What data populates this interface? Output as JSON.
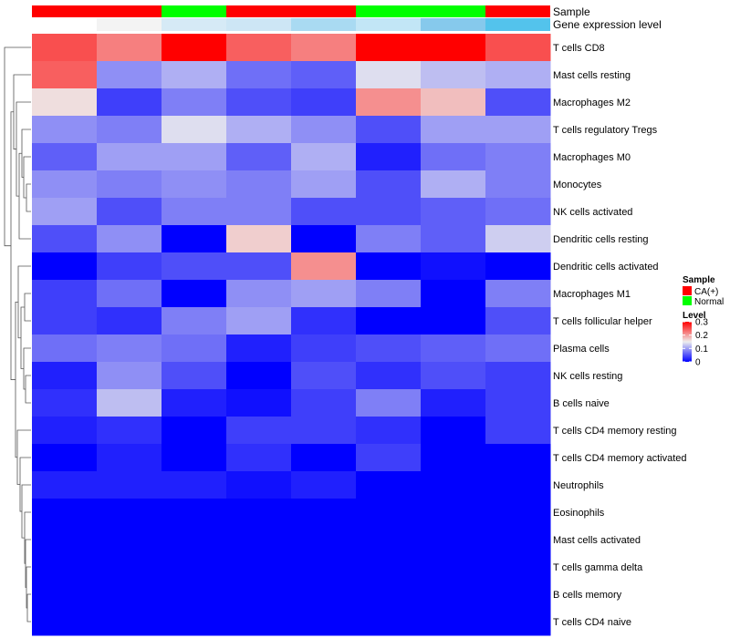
{
  "chart_data": {
    "type": "heatmap",
    "title": "",
    "annotation_rows": [
      {
        "name": "Sample",
        "label": "Sample"
      },
      {
        "name": "Gene expression level",
        "label": "Gene expression level"
      }
    ],
    "sample_groups": [
      "CA(+)",
      "CA(+)",
      "Normal",
      "CA(+)",
      "CA(+)",
      "Normal",
      "Normal",
      "CA(+)"
    ],
    "gene_expression_colors": [
      "#ffffff",
      "#f3f3f3",
      "#d6eaf6",
      "#cde6f5",
      "#a9daf2",
      "#c2e6f6",
      "#86c9ec",
      "#53c3ec"
    ],
    "rows": [
      "T cells CD8",
      "Mast cells resting",
      "Macrophages M2",
      "T cells regulatory  Tregs",
      "Macrophages M0",
      "Monocytes",
      "NK cells activated",
      "Dendritic cells resting",
      "Dendritic cells activated",
      "Macrophages M1",
      "T cells follicular helper",
      "Plasma cells",
      "NK cells resting",
      "B cells naive",
      "T cells CD4 memory resting",
      "T cells CD4 memory activated",
      "Neutrophils",
      "Eosinophils",
      "Mast cells activated",
      "T cells gamma delta",
      "B cells memory",
      "T cells CD4 naive"
    ],
    "values": [
      [
        0.25,
        0.22,
        0.3,
        0.24,
        0.22,
        0.3,
        0.3,
        0.25
      ],
      [
        0.24,
        0.09,
        0.11,
        0.07,
        0.06,
        0.14,
        0.12,
        0.11
      ],
      [
        0.16,
        0.04,
        0.08,
        0.05,
        0.04,
        0.21,
        0.18,
        0.05
      ],
      [
        0.09,
        0.08,
        0.14,
        0.11,
        0.09,
        0.05,
        0.1,
        0.1
      ],
      [
        0.06,
        0.1,
        0.1,
        0.06,
        0.11,
        0.02,
        0.07,
        0.08
      ],
      [
        0.09,
        0.08,
        0.09,
        0.08,
        0.1,
        0.05,
        0.11,
        0.08
      ],
      [
        0.1,
        0.05,
        0.08,
        0.08,
        0.05,
        0.05,
        0.06,
        0.07
      ],
      [
        0.05,
        0.09,
        0.0,
        0.17,
        0.0,
        0.08,
        0.06,
        0.13
      ],
      [
        0.0,
        0.04,
        0.05,
        0.05,
        0.21,
        0.0,
        0.01,
        0.0
      ],
      [
        0.04,
        0.07,
        0.0,
        0.09,
        0.1,
        0.08,
        0.0,
        0.08
      ],
      [
        0.04,
        0.03,
        0.08,
        0.1,
        0.03,
        0.0,
        0.0,
        0.05
      ],
      [
        0.07,
        0.08,
        0.07,
        0.02,
        0.04,
        0.05,
        0.06,
        0.07
      ],
      [
        0.02,
        0.09,
        0.05,
        0.0,
        0.05,
        0.03,
        0.05,
        0.04
      ],
      [
        0.03,
        0.12,
        0.02,
        0.01,
        0.04,
        0.08,
        0.02,
        0.04
      ],
      [
        0.02,
        0.03,
        0.0,
        0.04,
        0.04,
        0.03,
        0.0,
        0.04
      ],
      [
        0.0,
        0.02,
        0.0,
        0.03,
        0.0,
        0.04,
        0.0,
        0.0
      ],
      [
        0.02,
        0.02,
        0.02,
        0.01,
        0.02,
        0.0,
        0.0,
        0.0
      ],
      [
        0.0,
        0.0,
        0.0,
        0.0,
        0.0,
        0.0,
        0.0,
        0.0
      ],
      [
        0.0,
        0.0,
        0.0,
        0.0,
        0.0,
        0.0,
        0.0,
        0.0
      ],
      [
        0.0,
        0.0,
        0.0,
        0.0,
        0.0,
        0.0,
        0.0,
        0.0
      ],
      [
        0.0,
        0.0,
        0.0,
        0.0,
        0.0,
        0.0,
        0.0,
        0.0
      ],
      [
        0.0,
        0.0,
        0.0,
        0.0,
        0.0,
        0.0,
        0.0,
        0.0
      ]
    ],
    "color_scale": {
      "min": 0,
      "max": 0.3,
      "low": "#0000ff",
      "mid": "#eeeeee",
      "high": "#ff0000",
      "midpoint": 0.15
    },
    "legend": {
      "sample_title": "Sample",
      "sample_entries": [
        {
          "label": "CA(+)",
          "color": "#ff0000"
        },
        {
          "label": "Normal",
          "color": "#00ff00"
        }
      ],
      "level_title": "Level",
      "level_ticks": [
        "0.3",
        "0.2",
        "0.1",
        "0"
      ],
      "level_tick_values": [
        0.3,
        0.2,
        0.1,
        0
      ]
    },
    "dendrogram": "row"
  }
}
